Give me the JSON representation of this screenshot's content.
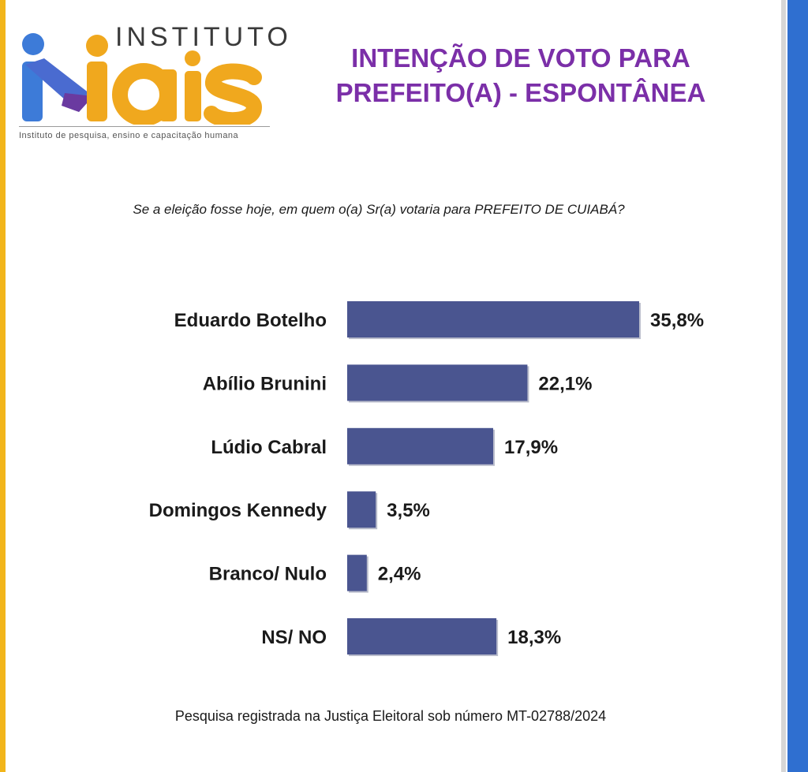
{
  "logo": {
    "word_top": "INSTITUTO",
    "word_main": "MAIS",
    "tagline": "Instituto de pesquisa, ensino e capacitação humana",
    "colors": {
      "blue": "#3d7bd8",
      "orange": "#f0a81e",
      "purple": "#6a3aa0"
    }
  },
  "header": {
    "title_line1": "INTENÇÃO DE VOTO PARA",
    "title_line2": "PREFEITO(A) - ESPONTÂNEA",
    "title_color": "#7b2fa8"
  },
  "question": "Se a eleição fosse hoje, em quem o(a) Sr(a) votaria para PREFEITO DE CUIABÁ?",
  "chart_data": {
    "type": "bar",
    "orientation": "horizontal",
    "categories": [
      "Eduardo Botelho",
      "Abílio Brunini",
      "Lúdio Cabral",
      "Domingos Kennedy",
      "Branco/ Nulo",
      "NS/ NO"
    ],
    "values": [
      35.8,
      22.1,
      17.9,
      3.5,
      2.4,
      18.3
    ],
    "value_labels": [
      "35,8%",
      "22,1%",
      "17,9%",
      "3,5%",
      "2,4%",
      "18,3%"
    ],
    "xlim": [
      0,
      40
    ],
    "bar_color": "#4a5590",
    "grid": false,
    "legend": "none"
  },
  "footnote": "Pesquisa registrada na Justiça Eleitoral sob número MT-02788/2024"
}
